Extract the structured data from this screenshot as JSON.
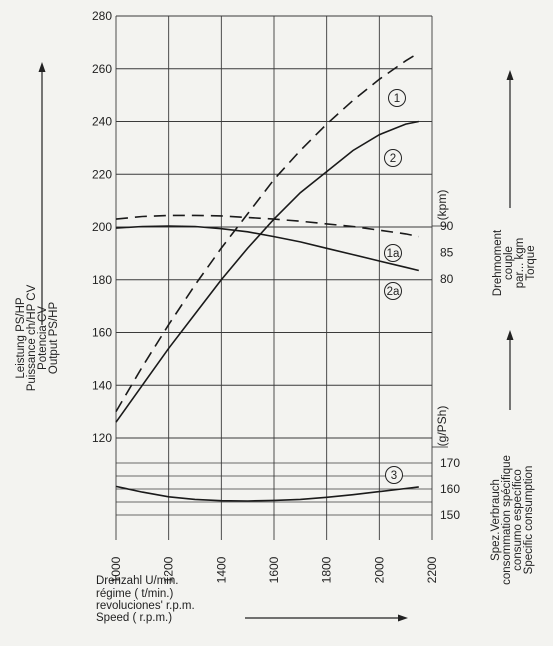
{
  "chart_data": {
    "type": "line",
    "x_axis": {
      "range": [
        1000,
        2200
      ],
      "ticks": [
        "1000",
        "1200",
        "1400",
        "1600",
        "1800",
        "2000",
        "2200"
      ],
      "labels": [
        "Drehzahl U/min.",
        "régime ( t/min.)",
        "revoluciones' r.p.m.",
        "Speed ( r.p.m.)"
      ]
    },
    "power_axis": {
      "range": [
        120,
        280
      ],
      "ticks": [
        "120",
        "140",
        "160",
        "180",
        "200",
        "220",
        "240",
        "260",
        "280"
      ],
      "labels": [
        "Leistung PS/HP",
        "Puissance ch/HP CV",
        "Potencia CV",
        "Output PS/HP"
      ]
    },
    "torque_axis": {
      "unit": "(kpm)",
      "range": [
        80,
        90
      ],
      "ticks": [
        "90",
        "85",
        "80"
      ],
      "labels": [
        "Drehmoment",
        "couple",
        "par... kgm",
        "Torque"
      ]
    },
    "consumption_axis": {
      "unit": "(g/PSh)",
      "range": [
        150,
        170
      ],
      "ticks": [
        "170",
        "160",
        "150"
      ],
      "labels": [
        "Spez.Verbrauch",
        "consommation spécifique",
        "consumo específico",
        "Specific consumption"
      ]
    },
    "series": [
      {
        "id": "1",
        "style": "dashed",
        "axis": "power",
        "x": [
          1000,
          1100,
          1200,
          1300,
          1400,
          1500,
          1600,
          1700,
          1800,
          1900,
          2000,
          2100,
          2150
        ],
        "y": [
          130,
          147,
          163,
          178,
          192,
          205,
          218,
          229,
          239,
          248,
          256,
          263,
          266
        ]
      },
      {
        "id": "2",
        "style": "solid",
        "axis": "power",
        "x": [
          1000,
          1100,
          1200,
          1300,
          1400,
          1500,
          1600,
          1700,
          1800,
          1900,
          2000,
          2100,
          2150
        ],
        "y": [
          126,
          140,
          154,
          167,
          180,
          192,
          203,
          213,
          221,
          229,
          235,
          239,
          240
        ]
      },
      {
        "id": "1a",
        "style": "dashed",
        "axis": "torque",
        "x": [
          1000,
          1100,
          1200,
          1300,
          1400,
          1500,
          1600,
          1700,
          1800,
          1900,
          2000,
          2100,
          2150
        ],
        "y": [
          91.3,
          91.8,
          92.0,
          92.0,
          91.9,
          91.6,
          91.3,
          90.9,
          90.4,
          89.9,
          89.2,
          88.5,
          88.0
        ]
      },
      {
        "id": "2a",
        "style": "solid",
        "axis": "torque",
        "x": [
          1000,
          1100,
          1200,
          1300,
          1400,
          1500,
          1600,
          1700,
          1800,
          1900,
          2000,
          2100,
          2150
        ],
        "y": [
          89.6,
          89.9,
          90.0,
          89.9,
          89.5,
          88.9,
          88.0,
          87.0,
          85.8,
          84.6,
          83.4,
          82.2,
          81.6
        ]
      },
      {
        "id": "3",
        "style": "solid",
        "axis": "consumption",
        "x": [
          1000,
          1100,
          1200,
          1300,
          1400,
          1500,
          1600,
          1700,
          1800,
          1900,
          2000,
          2100,
          2150
        ],
        "y": [
          161.0,
          158.8,
          157.0,
          156.0,
          155.5,
          155.4,
          155.6,
          156.0,
          156.8,
          157.8,
          159.0,
          160.2,
          160.8
        ]
      }
    ]
  }
}
